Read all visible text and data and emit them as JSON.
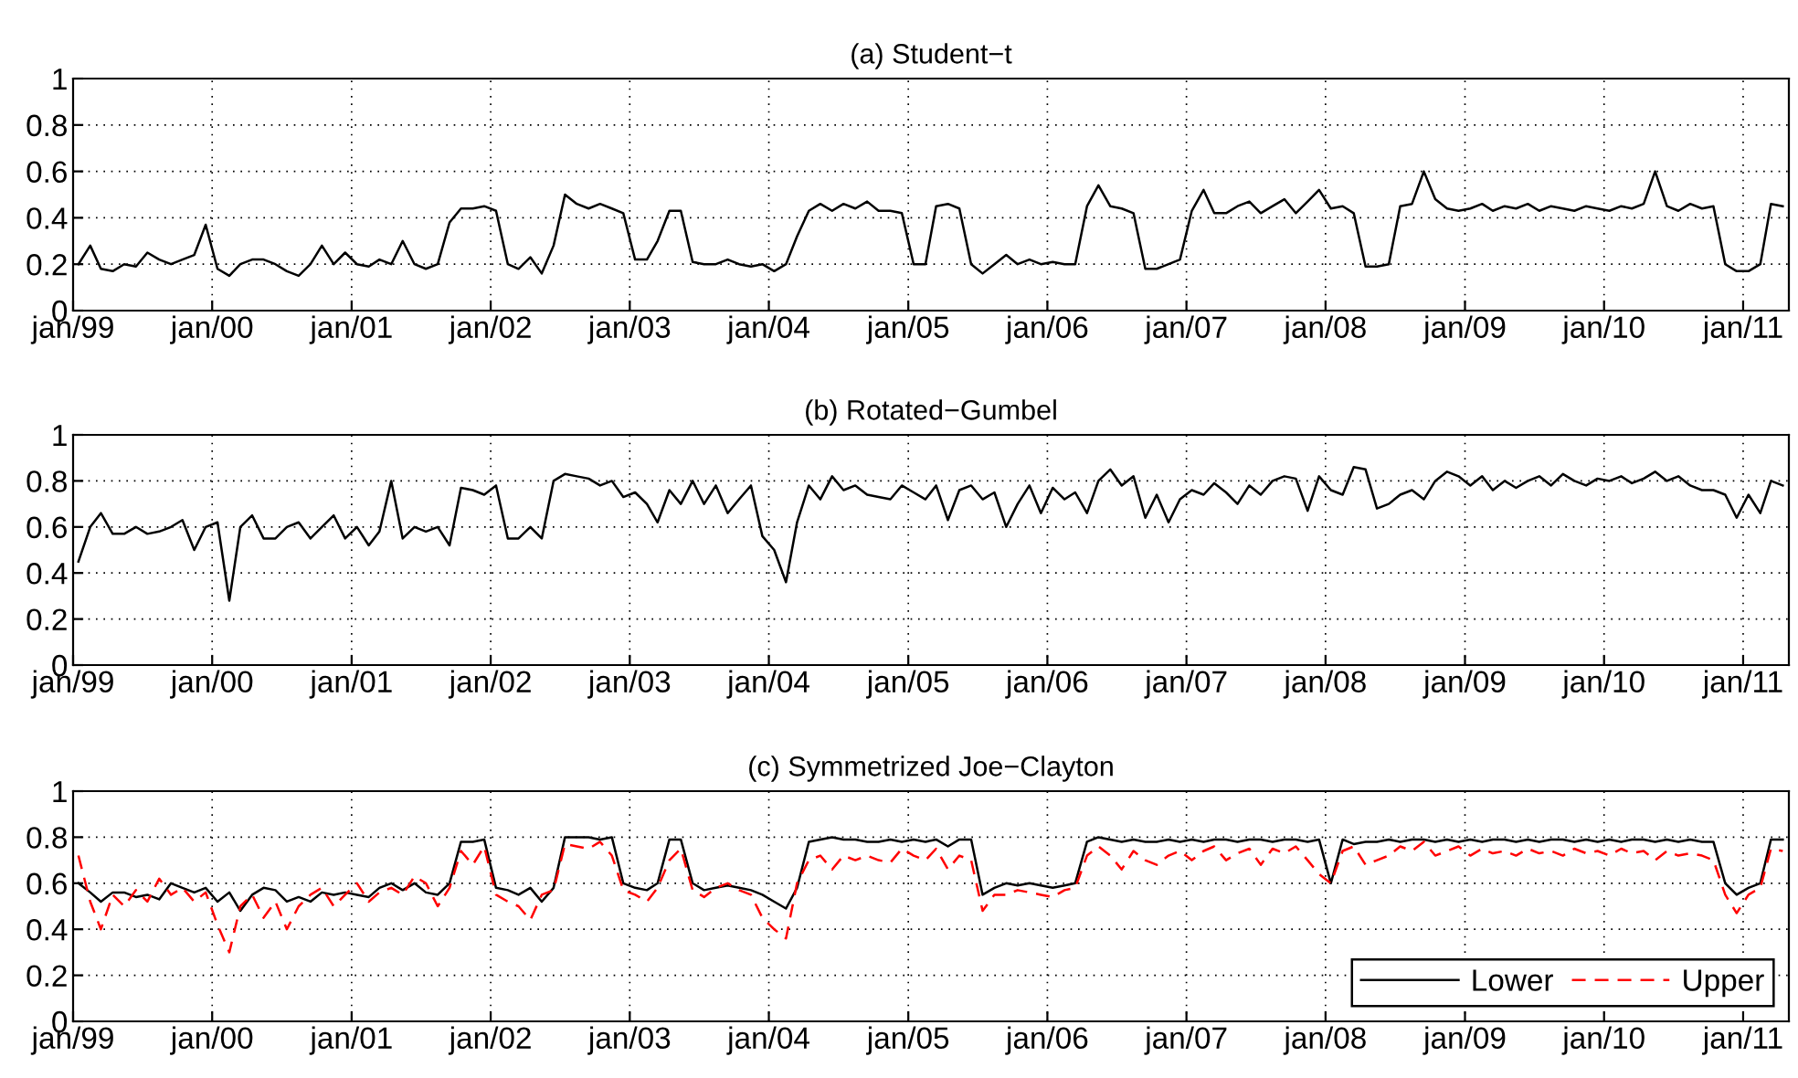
{
  "chart_data": [
    {
      "type": "line",
      "title": "(a) Student−t",
      "xlim": [
        "1999-01-01",
        "2011-05-01"
      ],
      "ylim": [
        0,
        1
      ],
      "yticks": [
        0,
        0.2,
        0.4,
        0.6,
        0.8,
        1
      ],
      "xticks": [
        {
          "value": "1999-01-01",
          "label": "jan/99"
        },
        {
          "value": "2000-01-01",
          "label": "jan/00"
        },
        {
          "value": "2001-01-01",
          "label": "jan/01"
        },
        {
          "value": "2002-01-01",
          "label": "jan/02"
        },
        {
          "value": "2003-01-01",
          "label": "jan/03"
        },
        {
          "value": "2004-01-01",
          "label": "jan/04"
        },
        {
          "value": "2005-01-01",
          "label": "jan/05"
        },
        {
          "value": "2006-01-01",
          "label": "jan/06"
        },
        {
          "value": "2007-01-01",
          "label": "jan/07"
        },
        {
          "value": "2008-01-01",
          "label": "jan/08"
        },
        {
          "value": "2009-01-01",
          "label": "jan/09"
        },
        {
          "value": "2010-01-01",
          "label": "jan/10"
        },
        {
          "value": "2011-01-01",
          "label": "jan/11"
        }
      ],
      "grid": true,
      "legend": false,
      "line_style": "solid",
      "x": [
        "1999-01",
        "1999-02",
        "1999-03",
        "1999-04",
        "1999-05",
        "1999-06",
        "1999-07",
        "1999-08",
        "1999-09",
        "1999-10",
        "1999-11",
        "1999-12",
        "2000-01",
        "2000-02",
        "2000-03",
        "2000-04",
        "2000-05",
        "2000-06",
        "2000-07",
        "2000-08",
        "2000-09",
        "2000-10",
        "2000-11",
        "2000-12",
        "2001-01",
        "2001-02",
        "2001-03",
        "2001-04",
        "2001-05",
        "2001-06",
        "2001-07",
        "2001-08",
        "2001-09",
        "2001-10",
        "2001-11",
        "2001-12",
        "2002-01",
        "2002-02",
        "2002-03",
        "2002-04",
        "2002-05",
        "2002-06",
        "2002-07",
        "2002-08",
        "2002-09",
        "2002-10",
        "2002-11",
        "2002-12",
        "2003-01",
        "2003-02",
        "2003-03",
        "2003-04",
        "2003-05",
        "2003-06",
        "2003-07",
        "2003-08",
        "2003-09",
        "2003-10",
        "2003-11",
        "2003-12",
        "2004-01",
        "2004-02",
        "2004-03",
        "2004-04",
        "2004-05",
        "2004-06",
        "2004-07",
        "2004-08",
        "2004-09",
        "2004-10",
        "2004-11",
        "2004-12",
        "2005-01",
        "2005-02",
        "2005-03",
        "2005-04",
        "2005-05",
        "2005-06",
        "2005-07",
        "2005-08",
        "2005-09",
        "2005-10",
        "2005-11",
        "2005-12",
        "2006-01",
        "2006-02",
        "2006-03",
        "2006-04",
        "2006-05",
        "2006-06",
        "2006-07",
        "2006-08",
        "2006-09",
        "2006-10",
        "2006-11",
        "2006-12",
        "2007-01",
        "2007-02",
        "2007-03",
        "2007-04",
        "2007-05",
        "2007-06",
        "2007-07",
        "2007-08",
        "2007-09",
        "2007-10",
        "2007-11",
        "2007-12",
        "2008-01",
        "2008-02",
        "2008-03",
        "2008-04",
        "2008-05",
        "2008-06",
        "2008-07",
        "2008-08",
        "2008-09",
        "2008-10",
        "2008-11",
        "2008-12",
        "2009-01",
        "2009-02",
        "2009-03",
        "2009-04",
        "2009-05",
        "2009-06",
        "2009-07",
        "2009-08",
        "2009-09",
        "2009-10",
        "2009-11",
        "2009-12",
        "2010-01",
        "2010-02",
        "2010-03",
        "2010-04",
        "2010-05",
        "2010-06",
        "2010-07",
        "2010-08",
        "2010-09",
        "2010-10",
        "2010-11",
        "2010-12",
        "2011-01",
        "2011-02",
        "2011-03",
        "2011-04"
      ],
      "series": [
        {
          "color": "#000000",
          "values": [
            0.2,
            0.28,
            0.18,
            0.17,
            0.2,
            0.19,
            0.25,
            0.22,
            0.2,
            0.22,
            0.24,
            0.37,
            0.18,
            0.15,
            0.2,
            0.22,
            0.22,
            0.2,
            0.17,
            0.15,
            0.2,
            0.28,
            0.2,
            0.25,
            0.2,
            0.19,
            0.22,
            0.2,
            0.3,
            0.2,
            0.18,
            0.2,
            0.38,
            0.44,
            0.44,
            0.45,
            0.43,
            0.2,
            0.18,
            0.23,
            0.16,
            0.28,
            0.5,
            0.46,
            0.44,
            0.46,
            0.44,
            0.42,
            0.22,
            0.22,
            0.3,
            0.43,
            0.43,
            0.21,
            0.2,
            0.2,
            0.22,
            0.2,
            0.19,
            0.2,
            0.17,
            0.2,
            0.32,
            0.43,
            0.46,
            0.43,
            0.46,
            0.44,
            0.47,
            0.43,
            0.43,
            0.42,
            0.2,
            0.2,
            0.45,
            0.46,
            0.44,
            0.2,
            0.16,
            0.2,
            0.24,
            0.2,
            0.22,
            0.2,
            0.21,
            0.2,
            0.2,
            0.45,
            0.54,
            0.45,
            0.44,
            0.42,
            0.18,
            0.18,
            0.2,
            0.22,
            0.43,
            0.52,
            0.42,
            0.42,
            0.45,
            0.47,
            0.42,
            0.45,
            0.48,
            0.42,
            0.47,
            0.52,
            0.44,
            0.45,
            0.42,
            0.19,
            0.19,
            0.2,
            0.45,
            0.46,
            0.6,
            0.48,
            0.44,
            0.43,
            0.44,
            0.46,
            0.43,
            0.45,
            0.44,
            0.46,
            0.43,
            0.45,
            0.44,
            0.43,
            0.45,
            0.44,
            0.43,
            0.45,
            0.44,
            0.46,
            0.6,
            0.45,
            0.43,
            0.46,
            0.44,
            0.45,
            0.2,
            0.17,
            0.17,
            0.2,
            0.46,
            0.45
          ]
        }
      ]
    },
    {
      "type": "line",
      "title": "(b) Rotated−Gumbel",
      "xlim": [
        "1999-01-01",
        "2011-05-01"
      ],
      "ylim": [
        0,
        1
      ],
      "yticks": [
        0,
        0.2,
        0.4,
        0.6,
        0.8,
        1
      ],
      "xticks": [
        {
          "value": "1999-01-01",
          "label": "jan/99"
        },
        {
          "value": "2000-01-01",
          "label": "jan/00"
        },
        {
          "value": "2001-01-01",
          "label": "jan/01"
        },
        {
          "value": "2002-01-01",
          "label": "jan/02"
        },
        {
          "value": "2003-01-01",
          "label": "jan/03"
        },
        {
          "value": "2004-01-01",
          "label": "jan/04"
        },
        {
          "value": "2005-01-01",
          "label": "jan/05"
        },
        {
          "value": "2006-01-01",
          "label": "jan/06"
        },
        {
          "value": "2007-01-01",
          "label": "jan/07"
        },
        {
          "value": "2008-01-01",
          "label": "jan/08"
        },
        {
          "value": "2009-01-01",
          "label": "jan/09"
        },
        {
          "value": "2010-01-01",
          "label": "jan/10"
        },
        {
          "value": "2011-01-01",
          "label": "jan/11"
        }
      ],
      "grid": true,
      "legend": false,
      "line_style": "solid",
      "x": [
        "1999-01",
        "1999-02",
        "1999-03",
        "1999-04",
        "1999-05",
        "1999-06",
        "1999-07",
        "1999-08",
        "1999-09",
        "1999-10",
        "1999-11",
        "1999-12",
        "2000-01",
        "2000-02",
        "2000-03",
        "2000-04",
        "2000-05",
        "2000-06",
        "2000-07",
        "2000-08",
        "2000-09",
        "2000-10",
        "2000-11",
        "2000-12",
        "2001-01",
        "2001-02",
        "2001-03",
        "2001-04",
        "2001-05",
        "2001-06",
        "2001-07",
        "2001-08",
        "2001-09",
        "2001-10",
        "2001-11",
        "2001-12",
        "2002-01",
        "2002-02",
        "2002-03",
        "2002-04",
        "2002-05",
        "2002-06",
        "2002-07",
        "2002-08",
        "2002-09",
        "2002-10",
        "2002-11",
        "2002-12",
        "2003-01",
        "2003-02",
        "2003-03",
        "2003-04",
        "2003-05",
        "2003-06",
        "2003-07",
        "2003-08",
        "2003-09",
        "2003-10",
        "2003-11",
        "2003-12",
        "2004-01",
        "2004-02",
        "2004-03",
        "2004-04",
        "2004-05",
        "2004-06",
        "2004-07",
        "2004-08",
        "2004-09",
        "2004-10",
        "2004-11",
        "2004-12",
        "2005-01",
        "2005-02",
        "2005-03",
        "2005-04",
        "2005-05",
        "2005-06",
        "2005-07",
        "2005-08",
        "2005-09",
        "2005-10",
        "2005-11",
        "2005-12",
        "2006-01",
        "2006-02",
        "2006-03",
        "2006-04",
        "2006-05",
        "2006-06",
        "2006-07",
        "2006-08",
        "2006-09",
        "2006-10",
        "2006-11",
        "2006-12",
        "2007-01",
        "2007-02",
        "2007-03",
        "2007-04",
        "2007-05",
        "2007-06",
        "2007-07",
        "2007-08",
        "2007-09",
        "2007-10",
        "2007-11",
        "2007-12",
        "2008-01",
        "2008-02",
        "2008-03",
        "2008-04",
        "2008-05",
        "2008-06",
        "2008-07",
        "2008-08",
        "2008-09",
        "2008-10",
        "2008-11",
        "2008-12",
        "2009-01",
        "2009-02",
        "2009-03",
        "2009-04",
        "2009-05",
        "2009-06",
        "2009-07",
        "2009-08",
        "2009-09",
        "2009-10",
        "2009-11",
        "2009-12",
        "2010-01",
        "2010-02",
        "2010-03",
        "2010-04",
        "2010-05",
        "2010-06",
        "2010-07",
        "2010-08",
        "2010-09",
        "2010-10",
        "2010-11",
        "2010-12",
        "2011-01",
        "2011-02",
        "2011-03",
        "2011-04"
      ],
      "series": [
        {
          "color": "#000000",
          "values": [
            0.45,
            0.6,
            0.66,
            0.57,
            0.57,
            0.6,
            0.57,
            0.58,
            0.6,
            0.63,
            0.5,
            0.6,
            0.62,
            0.28,
            0.6,
            0.65,
            0.55,
            0.55,
            0.6,
            0.62,
            0.55,
            0.6,
            0.65,
            0.55,
            0.6,
            0.52,
            0.58,
            0.8,
            0.55,
            0.6,
            0.58,
            0.6,
            0.52,
            0.77,
            0.76,
            0.74,
            0.78,
            0.55,
            0.55,
            0.6,
            0.55,
            0.8,
            0.83,
            0.82,
            0.81,
            0.78,
            0.8,
            0.73,
            0.75,
            0.7,
            0.62,
            0.76,
            0.7,
            0.8,
            0.7,
            0.78,
            0.66,
            0.72,
            0.78,
            0.56,
            0.5,
            0.36,
            0.62,
            0.78,
            0.72,
            0.82,
            0.76,
            0.78,
            0.74,
            0.73,
            0.72,
            0.78,
            0.75,
            0.72,
            0.78,
            0.63,
            0.76,
            0.78,
            0.72,
            0.75,
            0.6,
            0.7,
            0.78,
            0.66,
            0.77,
            0.72,
            0.75,
            0.66,
            0.8,
            0.85,
            0.78,
            0.82,
            0.64,
            0.74,
            0.62,
            0.72,
            0.76,
            0.74,
            0.79,
            0.75,
            0.7,
            0.78,
            0.74,
            0.8,
            0.82,
            0.81,
            0.67,
            0.82,
            0.76,
            0.74,
            0.86,
            0.85,
            0.68,
            0.7,
            0.74,
            0.76,
            0.72,
            0.8,
            0.84,
            0.82,
            0.78,
            0.82,
            0.76,
            0.8,
            0.77,
            0.8,
            0.82,
            0.78,
            0.83,
            0.8,
            0.78,
            0.81,
            0.8,
            0.82,
            0.79,
            0.81,
            0.84,
            0.8,
            0.82,
            0.78,
            0.76,
            0.76,
            0.74,
            0.64,
            0.74,
            0.66,
            0.8,
            0.78
          ]
        }
      ]
    },
    {
      "type": "line",
      "title": "(c) Symmetrized Joe−Clayton",
      "xlim": [
        "1999-01-01",
        "2011-05-01"
      ],
      "ylim": [
        0,
        1
      ],
      "yticks": [
        0,
        0.2,
        0.4,
        0.6,
        0.8,
        1
      ],
      "xticks": [
        {
          "value": "1999-01-01",
          "label": "jan/99"
        },
        {
          "value": "2000-01-01",
          "label": "jan/00"
        },
        {
          "value": "2001-01-01",
          "label": "jan/01"
        },
        {
          "value": "2002-01-01",
          "label": "jan/02"
        },
        {
          "value": "2003-01-01",
          "label": "jan/03"
        },
        {
          "value": "2004-01-01",
          "label": "jan/04"
        },
        {
          "value": "2005-01-01",
          "label": "jan/05"
        },
        {
          "value": "2006-01-01",
          "label": "jan/06"
        },
        {
          "value": "2007-01-01",
          "label": "jan/07"
        },
        {
          "value": "2008-01-01",
          "label": "jan/08"
        },
        {
          "value": "2009-01-01",
          "label": "jan/09"
        },
        {
          "value": "2010-01-01",
          "label": "jan/10"
        },
        {
          "value": "2011-01-01",
          "label": "jan/11"
        }
      ],
      "grid": true,
      "legend": "bottom right",
      "x": [
        "1999-01",
        "1999-02",
        "1999-03",
        "1999-04",
        "1999-05",
        "1999-06",
        "1999-07",
        "1999-08",
        "1999-09",
        "1999-10",
        "1999-11",
        "1999-12",
        "2000-01",
        "2000-02",
        "2000-03",
        "2000-04",
        "2000-05",
        "2000-06",
        "2000-07",
        "2000-08",
        "2000-09",
        "2000-10",
        "2000-11",
        "2000-12",
        "2001-01",
        "2001-02",
        "2001-03",
        "2001-04",
        "2001-05",
        "2001-06",
        "2001-07",
        "2001-08",
        "2001-09",
        "2001-10",
        "2001-11",
        "2001-12",
        "2002-01",
        "2002-02",
        "2002-03",
        "2002-04",
        "2002-05",
        "2002-06",
        "2002-07",
        "2002-08",
        "2002-09",
        "2002-10",
        "2002-11",
        "2002-12",
        "2003-01",
        "2003-02",
        "2003-03",
        "2003-04",
        "2003-05",
        "2003-06",
        "2003-07",
        "2003-08",
        "2003-09",
        "2003-10",
        "2003-11",
        "2003-12",
        "2004-01",
        "2004-02",
        "2004-03",
        "2004-04",
        "2004-05",
        "2004-06",
        "2004-07",
        "2004-08",
        "2004-09",
        "2004-10",
        "2004-11",
        "2004-12",
        "2005-01",
        "2005-02",
        "2005-03",
        "2005-04",
        "2005-05",
        "2005-06",
        "2005-07",
        "2005-08",
        "2005-09",
        "2005-10",
        "2005-11",
        "2005-12",
        "2006-01",
        "2006-02",
        "2006-03",
        "2006-04",
        "2006-05",
        "2006-06",
        "2006-07",
        "2006-08",
        "2006-09",
        "2006-10",
        "2006-11",
        "2006-12",
        "2007-01",
        "2007-02",
        "2007-03",
        "2007-04",
        "2007-05",
        "2007-06",
        "2007-07",
        "2007-08",
        "2007-09",
        "2007-10",
        "2007-11",
        "2007-12",
        "2008-01",
        "2008-02",
        "2008-03",
        "2008-04",
        "2008-05",
        "2008-06",
        "2008-07",
        "2008-08",
        "2008-09",
        "2008-10",
        "2008-11",
        "2008-12",
        "2009-01",
        "2009-02",
        "2009-03",
        "2009-04",
        "2009-05",
        "2009-06",
        "2009-07",
        "2009-08",
        "2009-09",
        "2009-10",
        "2009-11",
        "2009-12",
        "2010-01",
        "2010-02",
        "2010-03",
        "2010-04",
        "2010-05",
        "2010-06",
        "2010-07",
        "2010-08",
        "2010-09",
        "2010-10",
        "2010-11",
        "2010-12",
        "2011-01",
        "2011-02",
        "2011-03",
        "2011-04"
      ],
      "series": [
        {
          "name": "Lower",
          "color": "#000000",
          "line_style": "solid",
          "values": [
            0.6,
            0.56,
            0.52,
            0.56,
            0.56,
            0.54,
            0.55,
            0.53,
            0.6,
            0.58,
            0.56,
            0.58,
            0.52,
            0.56,
            0.48,
            0.55,
            0.58,
            0.57,
            0.52,
            0.54,
            0.52,
            0.56,
            0.55,
            0.56,
            0.55,
            0.54,
            0.58,
            0.6,
            0.57,
            0.6,
            0.56,
            0.55,
            0.6,
            0.78,
            0.78,
            0.79,
            0.58,
            0.57,
            0.55,
            0.58,
            0.52,
            0.58,
            0.8,
            0.8,
            0.8,
            0.79,
            0.8,
            0.6,
            0.58,
            0.57,
            0.6,
            0.79,
            0.79,
            0.6,
            0.57,
            0.58,
            0.59,
            0.58,
            0.57,
            0.55,
            0.52,
            0.49,
            0.58,
            0.78,
            0.79,
            0.8,
            0.79,
            0.79,
            0.78,
            0.78,
            0.79,
            0.78,
            0.79,
            0.78,
            0.79,
            0.76,
            0.79,
            0.79,
            0.55,
            0.58,
            0.6,
            0.59,
            0.6,
            0.59,
            0.58,
            0.59,
            0.6,
            0.78,
            0.8,
            0.79,
            0.78,
            0.79,
            0.78,
            0.78,
            0.79,
            0.78,
            0.79,
            0.78,
            0.79,
            0.79,
            0.78,
            0.79,
            0.79,
            0.78,
            0.79,
            0.79,
            0.78,
            0.79,
            0.6,
            0.79,
            0.77,
            0.78,
            0.78,
            0.79,
            0.78,
            0.79,
            0.79,
            0.78,
            0.79,
            0.78,
            0.79,
            0.78,
            0.79,
            0.79,
            0.78,
            0.79,
            0.78,
            0.79,
            0.79,
            0.78,
            0.79,
            0.78,
            0.79,
            0.78,
            0.79,
            0.79,
            0.78,
            0.79,
            0.78,
            0.79,
            0.78,
            0.78,
            0.6,
            0.55,
            0.58,
            0.6,
            0.79,
            0.79
          ]
        },
        {
          "name": "Upper",
          "color": "#ff0000",
          "line_style": "dashed",
          "values": [
            0.72,
            0.52,
            0.4,
            0.55,
            0.5,
            0.57,
            0.52,
            0.62,
            0.55,
            0.58,
            0.52,
            0.56,
            0.42,
            0.3,
            0.5,
            0.55,
            0.45,
            0.52,
            0.4,
            0.5,
            0.55,
            0.58,
            0.5,
            0.55,
            0.6,
            0.52,
            0.56,
            0.58,
            0.55,
            0.63,
            0.6,
            0.5,
            0.58,
            0.74,
            0.68,
            0.76,
            0.55,
            0.52,
            0.5,
            0.44,
            0.55,
            0.57,
            0.77,
            0.76,
            0.75,
            0.78,
            0.72,
            0.57,
            0.55,
            0.52,
            0.58,
            0.7,
            0.75,
            0.57,
            0.54,
            0.58,
            0.6,
            0.57,
            0.55,
            0.45,
            0.4,
            0.36,
            0.6,
            0.7,
            0.72,
            0.66,
            0.72,
            0.7,
            0.72,
            0.7,
            0.69,
            0.75,
            0.72,
            0.7,
            0.75,
            0.66,
            0.72,
            0.7,
            0.48,
            0.55,
            0.55,
            0.57,
            0.56,
            0.55,
            0.54,
            0.57,
            0.58,
            0.72,
            0.76,
            0.72,
            0.66,
            0.74,
            0.7,
            0.68,
            0.72,
            0.74,
            0.7,
            0.74,
            0.76,
            0.7,
            0.73,
            0.75,
            0.68,
            0.75,
            0.73,
            0.76,
            0.7,
            0.64,
            0.6,
            0.74,
            0.76,
            0.68,
            0.7,
            0.72,
            0.76,
            0.74,
            0.78,
            0.72,
            0.74,
            0.76,
            0.72,
            0.75,
            0.73,
            0.74,
            0.72,
            0.75,
            0.73,
            0.74,
            0.72,
            0.75,
            0.73,
            0.74,
            0.72,
            0.75,
            0.73,
            0.74,
            0.7,
            0.74,
            0.72,
            0.73,
            0.72,
            0.7,
            0.55,
            0.47,
            0.55,
            0.58,
            0.75,
            0.74
          ]
        }
      ]
    }
  ]
}
